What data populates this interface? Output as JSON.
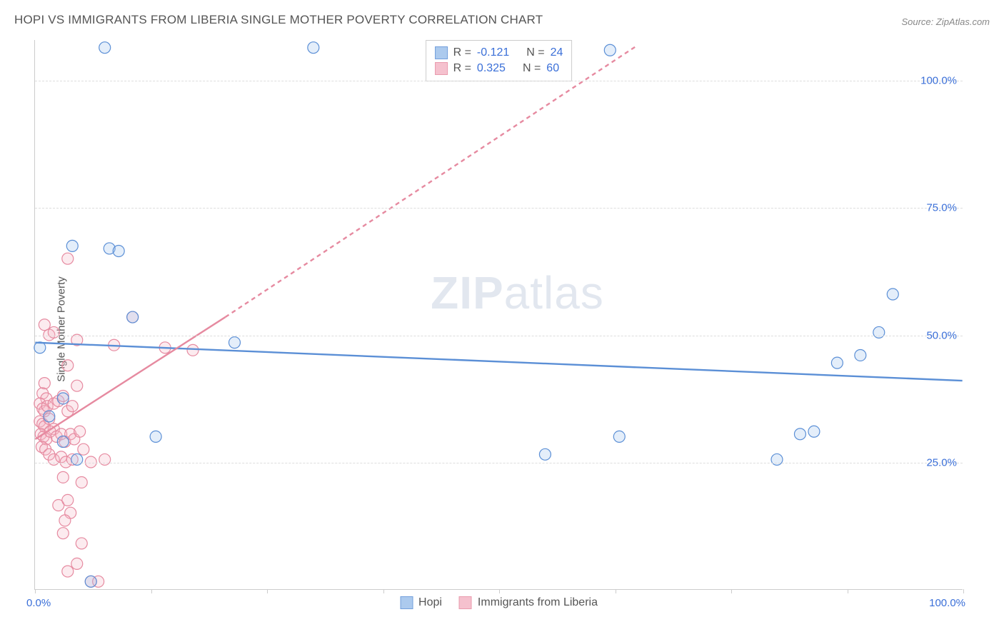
{
  "header": {
    "title": "HOPI VS IMMIGRANTS FROM LIBERIA SINGLE MOTHER POVERTY CORRELATION CHART",
    "source": "Source: ZipAtlas.com"
  },
  "chart": {
    "type": "scatter",
    "ylabel": "Single Mother Poverty",
    "watermark_prefix": "ZIP",
    "watermark_suffix": "atlas",
    "xlim": [
      0,
      100
    ],
    "ylim": [
      0,
      108
    ],
    "x_tick_positions": [
      0,
      12.5,
      25,
      37.5,
      50,
      62.5,
      75,
      87.5,
      100
    ],
    "x_axis_labels": {
      "left": "0.0%",
      "right": "100.0%"
    },
    "y_gridlines": [
      {
        "value": 25,
        "label": "25.0%"
      },
      {
        "value": 50,
        "label": "50.0%"
      },
      {
        "value": 75,
        "label": "75.0%"
      },
      {
        "value": 100,
        "label": "100.0%"
      }
    ],
    "background_color": "#ffffff",
    "grid_color": "#dddddd",
    "axis_color": "#cccccc",
    "tick_label_color": "#3a6fd8",
    "marker_radius": 8,
    "marker_stroke_width": 1.2,
    "marker_fill_opacity": 0.28,
    "trend_line_width": 2.4,
    "trend_dash": "6,5",
    "series": {
      "hopi": {
        "label": "Hopi",
        "color_stroke": "#5b8fd6",
        "color_fill": "#9ec1ec",
        "R": "-0.121",
        "N": "24",
        "trend": {
          "x1": 0,
          "y1": 48.5,
          "x2": 100,
          "y2": 41.0,
          "extrapolated": false
        },
        "points": [
          [
            7.5,
            106.5
          ],
          [
            30.0,
            106.5
          ],
          [
            62.0,
            106.0
          ],
          [
            4.0,
            67.5
          ],
          [
            8.0,
            67.0
          ],
          [
            9.0,
            66.5
          ],
          [
            10.5,
            53.5
          ],
          [
            0.5,
            47.5
          ],
          [
            21.5,
            48.5
          ],
          [
            3.0,
            37.5
          ],
          [
            13.0,
            30.0
          ],
          [
            3.0,
            29.0
          ],
          [
            4.5,
            25.5
          ],
          [
            1.5,
            34.0
          ],
          [
            55.0,
            26.5
          ],
          [
            63.0,
            30.0
          ],
          [
            80.0,
            25.5
          ],
          [
            82.5,
            30.5
          ],
          [
            84.0,
            31.0
          ],
          [
            86.5,
            44.5
          ],
          [
            89.0,
            46.0
          ],
          [
            91.0,
            50.5
          ],
          [
            92.5,
            58.0
          ],
          [
            6.0,
            1.5
          ]
        ]
      },
      "liberia": {
        "label": "Immigrants from Liberia",
        "color_stroke": "#e68aa0",
        "color_fill": "#f4b7c6",
        "R": "0.325",
        "N": "60",
        "trend": {
          "x1": 0,
          "y1": 29.5,
          "x2": 20.5,
          "y2": 53.5,
          "extrapolated_x2": 65,
          "extrapolated_y2": 107
        },
        "points": [
          [
            3.5,
            65.0
          ],
          [
            1.0,
            52.0
          ],
          [
            1.5,
            50.0
          ],
          [
            2.0,
            50.5
          ],
          [
            10.5,
            53.5
          ],
          [
            4.5,
            49.0
          ],
          [
            8.5,
            48.0
          ],
          [
            14.0,
            47.5
          ],
          [
            17.0,
            47.0
          ],
          [
            3.5,
            44.0
          ],
          [
            1.0,
            40.5
          ],
          [
            0.8,
            38.5
          ],
          [
            1.2,
            37.5
          ],
          [
            4.5,
            40.0
          ],
          [
            0.5,
            36.5
          ],
          [
            0.8,
            35.5
          ],
          [
            1.0,
            35.0
          ],
          [
            1.3,
            36.0
          ],
          [
            2.0,
            36.5
          ],
          [
            2.5,
            37.0
          ],
          [
            3.0,
            38.0
          ],
          [
            3.5,
            35.0
          ],
          [
            4.0,
            36.0
          ],
          [
            0.5,
            33.0
          ],
          [
            0.8,
            32.5
          ],
          [
            1.0,
            32.0
          ],
          [
            1.5,
            33.5
          ],
          [
            2.0,
            31.5
          ],
          [
            0.6,
            30.5
          ],
          [
            0.9,
            30.0
          ],
          [
            1.2,
            29.5
          ],
          [
            1.6,
            31.0
          ],
          [
            2.3,
            30.0
          ],
          [
            2.8,
            30.5
          ],
          [
            3.2,
            29.0
          ],
          [
            3.8,
            30.5
          ],
          [
            4.2,
            29.5
          ],
          [
            4.8,
            31.0
          ],
          [
            0.7,
            28.0
          ],
          [
            1.1,
            27.5
          ],
          [
            1.5,
            26.5
          ],
          [
            2.0,
            25.5
          ],
          [
            2.8,
            26.0
          ],
          [
            3.3,
            25.0
          ],
          [
            4.0,
            25.5
          ],
          [
            5.2,
            27.5
          ],
          [
            6.0,
            25.0
          ],
          [
            7.5,
            25.5
          ],
          [
            3.0,
            22.0
          ],
          [
            5.0,
            21.0
          ],
          [
            2.5,
            16.5
          ],
          [
            3.5,
            17.5
          ],
          [
            3.8,
            15.0
          ],
          [
            3.2,
            13.5
          ],
          [
            3.0,
            11.0
          ],
          [
            5.0,
            9.0
          ],
          [
            4.5,
            5.0
          ],
          [
            6.0,
            1.5
          ],
          [
            6.8,
            1.5
          ],
          [
            3.5,
            3.5
          ]
        ]
      }
    },
    "legend_top_labels": {
      "R": "R =",
      "N": "N ="
    }
  }
}
